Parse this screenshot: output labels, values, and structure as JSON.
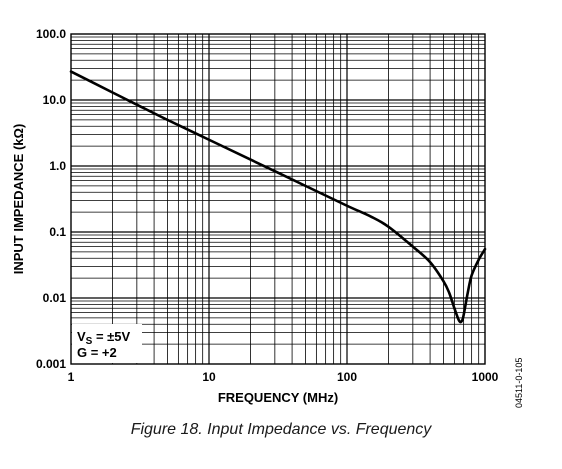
{
  "chart_data": {
    "type": "line",
    "title": "",
    "xlabel": "FREQUENCY (MHz)",
    "ylabel": "INPUT IMPEDANCE (kΩ)",
    "x_scale": "log",
    "y_scale": "log",
    "xlim": [
      1,
      1000
    ],
    "ylim": [
      0.001,
      100
    ],
    "x_ticks": [
      {
        "value": 1,
        "label": "1"
      },
      {
        "value": 10,
        "label": "10"
      },
      {
        "value": 100,
        "label": "100"
      },
      {
        "value": 1000,
        "label": "1000"
      }
    ],
    "y_ticks": [
      {
        "value": 100,
        "label": "100.0"
      },
      {
        "value": 10,
        "label": "10.0"
      },
      {
        "value": 1,
        "label": "1.0"
      },
      {
        "value": 0.1,
        "label": "0.1"
      },
      {
        "value": 0.01,
        "label": "0.01"
      },
      {
        "value": 0.001,
        "label": "0.001"
      }
    ],
    "grid": true,
    "legend": {
      "placement": "bottom-left",
      "line1_prefix": "V",
      "line1_sub": "S",
      "line1_suffix": " = ±5V",
      "line2": "G = +2"
    },
    "series": [
      {
        "color": "#000000",
        "x": [
          1,
          2,
          3,
          5,
          10,
          20,
          50,
          100,
          150,
          200,
          300,
          400,
          500,
          550,
          600,
          650,
          680,
          700,
          750,
          800,
          900,
          1000
        ],
        "y": [
          27,
          13,
          8.5,
          5,
          2.5,
          1.25,
          0.5,
          0.25,
          0.17,
          0.12,
          0.06,
          0.035,
          0.018,
          0.012,
          0.007,
          0.0045,
          0.0045,
          0.0055,
          0.012,
          0.022,
          0.038,
          0.055
        ]
      }
    ]
  },
  "caption": "Figure 18. Input Impedance vs. Frequency",
  "figure_id": "04511-0-105"
}
